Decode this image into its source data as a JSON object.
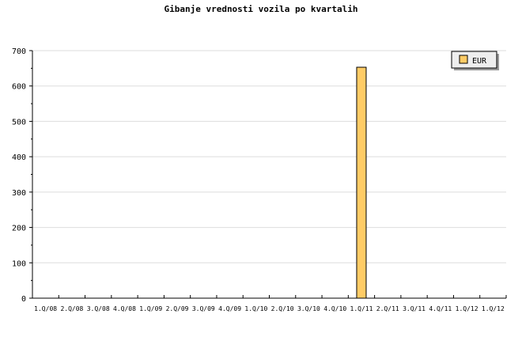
{
  "chart_data": {
    "type": "bar",
    "title": "Gibanje vrednosti vozila po kvartalih",
    "categories": [
      "1.Q/08",
      "2.Q/08",
      "3.Q/08",
      "4.Q/08",
      "1.Q/09",
      "2.Q/09",
      "3.Q/09",
      "4.Q/09",
      "1.Q/10",
      "2.Q/10",
      "3.Q/10",
      "4.Q/10",
      "1.Q/11",
      "2.Q/11",
      "3.Q/11",
      "4.Q/11",
      "1.Q/12",
      "1.Q/12"
    ],
    "series": [
      {
        "name": "EUR",
        "values": [
          0,
          0,
          0,
          0,
          0,
          0,
          0,
          0,
          0,
          0,
          0,
          0,
          653,
          0,
          0,
          0,
          0,
          0
        ]
      }
    ],
    "ylim": [
      0,
      700
    ],
    "yticks": [
      0,
      100,
      200,
      300,
      400,
      500,
      600,
      700
    ],
    "grid": true,
    "legend": "top-right",
    "colors": {
      "bar": "#ffcc66",
      "grid": "#dddddd"
    }
  }
}
